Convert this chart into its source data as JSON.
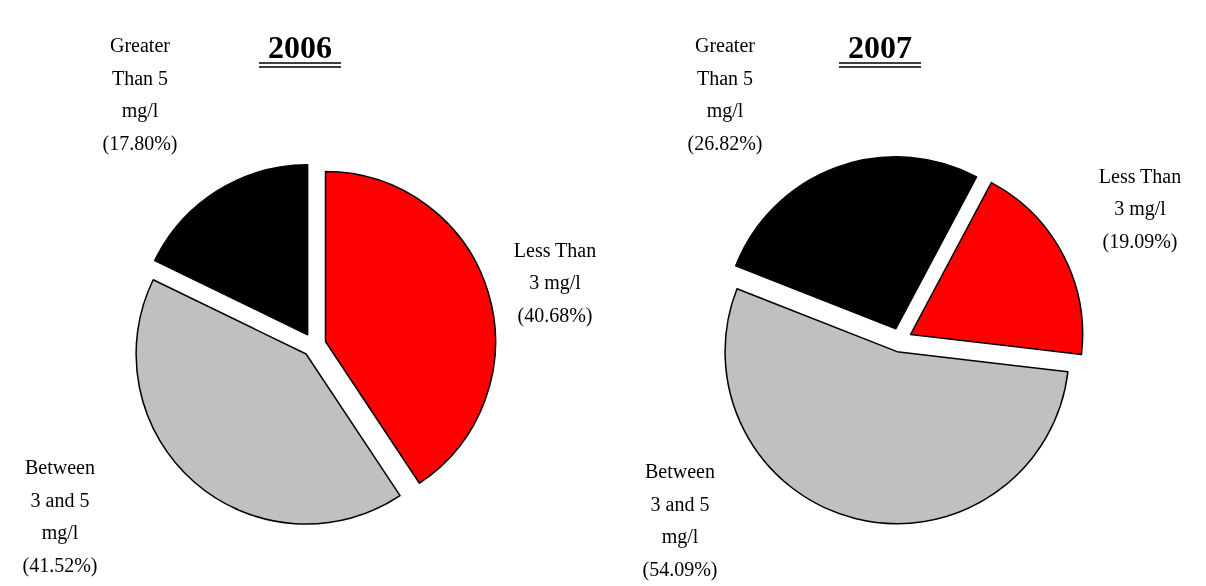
{
  "chart_data": [
    {
      "type": "pie",
      "title": "2006",
      "categories": [
        "Less Than\n3 mg/l",
        "Between\n3 and 5\nmg/l",
        "Greater\nThan 5\nmg/l"
      ],
      "values": [
        40.68,
        41.52,
        17.8
      ],
      "value_labels": [
        "(40.68%)",
        "(41.52%)",
        "(17.80%)"
      ],
      "colors": [
        "#ff0000",
        "#c0c0c0",
        "#000000"
      ]
    },
    {
      "type": "pie",
      "title": "2007",
      "categories": [
        "Less Than\n3 mg/l",
        "Between\n3 and 5\nmg/l",
        "Greater\nThan 5\nmg/l"
      ],
      "values": [
        19.09,
        54.09,
        26.82
      ],
      "value_labels": [
        "(19.09%)",
        "(54.09%)",
        "(26.82%)"
      ],
      "colors": [
        "#ff0000",
        "#c0c0c0",
        "#000000"
      ]
    }
  ]
}
